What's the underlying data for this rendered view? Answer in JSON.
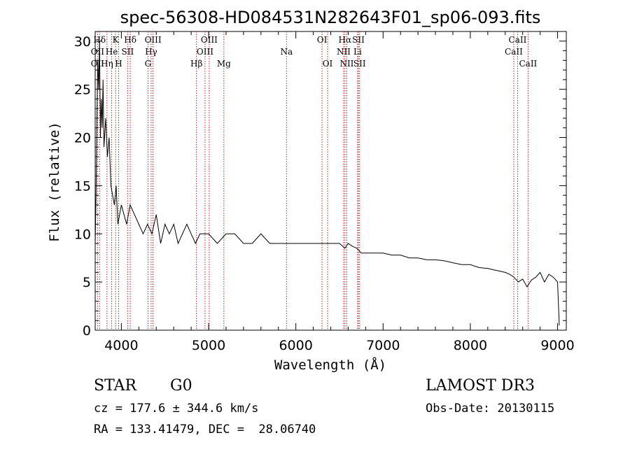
{
  "chart_data": {
    "type": "line",
    "title": "spec-56308-HD084531N282643F01_sp06-093.fits",
    "xlabel": "Wavelength (Å)",
    "ylabel": "Flux (relative)",
    "xlim": [
      3700,
      9100
    ],
    "ylim": [
      0,
      31
    ],
    "x_ticks": [
      4000,
      5000,
      6000,
      7000,
      8000,
      9000
    ],
    "y_ticks": [
      0,
      5,
      10,
      15,
      20,
      25,
      30
    ],
    "grid": false,
    "legend": "none",
    "line_color": "#000000",
    "marker_color": "#b22222",
    "series": [
      {
        "x": [
          3700,
          3710,
          3720,
          3730,
          3740,
          3750,
          3760,
          3770,
          3780,
          3790,
          3800,
          3820,
          3840,
          3860,
          3880,
          3900,
          3920,
          3940,
          3960,
          3980,
          4000,
          4030,
          4060,
          4100,
          4150,
          4200,
          4250,
          4300,
          4350,
          4400,
          4450,
          4500,
          4550,
          4600,
          4650,
          4700,
          4750,
          4800,
          4850,
          4900,
          4950,
          5000,
          5100,
          5200,
          5300,
          5400,
          5500,
          5600,
          5700,
          5800,
          5900,
          6000,
          6100,
          6200,
          6300,
          6400,
          6500,
          6562,
          6600,
          6650,
          6700,
          6750,
          6800,
          6900,
          7000,
          7100,
          7200,
          7300,
          7400,
          7500,
          7600,
          7700,
          7800,
          7900,
          8000,
          8100,
          8200,
          8300,
          8400,
          8450,
          8500,
          8550,
          8600,
          8650,
          8700,
          8750,
          8800,
          8850,
          8900,
          8950,
          9000,
          9020
        ],
        "y": [
          9,
          14,
          22,
          28,
          25,
          30,
          20,
          24,
          21,
          26,
          19,
          22,
          18,
          20,
          15,
          14,
          13,
          15,
          11,
          12,
          13,
          12,
          11,
          13,
          12,
          11,
          10,
          11,
          10,
          12,
          9,
          11,
          10,
          11,
          9,
          10,
          11,
          10,
          9,
          10,
          10,
          10,
          9,
          10,
          10,
          9,
          9,
          10,
          9,
          9,
          9,
          9,
          9,
          9,
          9,
          9,
          9,
          8.5,
          9,
          8.7,
          8.5,
          8,
          8,
          8,
          8,
          7.8,
          7.8,
          7.5,
          7.5,
          7.3,
          7.3,
          7.2,
          7,
          6.8,
          6.8,
          6.5,
          6.4,
          6.2,
          6,
          5.8,
          5.5,
          5,
          5.3,
          4.5,
          5.2,
          5.5,
          6,
          5,
          5.8,
          5.5,
          5,
          0.5
        ]
      }
    ],
    "line_markers": [
      {
        "label": "Hδ",
        "wavelength": 3750,
        "row": 0
      },
      {
        "label": "K",
        "wavelength": 3934,
        "row": 0
      },
      {
        "label": "Hδ",
        "wavelength": 4102,
        "row": 0
      },
      {
        "label": "OIII",
        "wavelength": 4363,
        "row": 0
      },
      {
        "label": "OIII",
        "wavelength": 5007,
        "row": 0
      },
      {
        "label": "OI",
        "wavelength": 6300,
        "row": 0
      },
      {
        "label": "Hα",
        "wavelength": 6563,
        "row": 0
      },
      {
        "label": "SII",
        "wavelength": 6717,
        "row": 0
      },
      {
        "label": "CaII",
        "wavelength": 8542,
        "row": 0
      },
      {
        "label": "OII",
        "wavelength": 3727,
        "row": 1
      },
      {
        "label": "He",
        "wavelength": 3889,
        "row": 1
      },
      {
        "label": "SII",
        "wavelength": 4072,
        "row": 1
      },
      {
        "label": "Hγ",
        "wavelength": 4341,
        "row": 1
      },
      {
        "label": "OIII",
        "wavelength": 4959,
        "row": 1
      },
      {
        "label": "Na",
        "wavelength": 5893,
        "row": 1
      },
      {
        "label": "NII",
        "wavelength": 6548,
        "row": 1
      },
      {
        "label": "Li",
        "wavelength": 6708,
        "row": 1
      },
      {
        "label": "CaII",
        "wavelength": 8498,
        "row": 1
      },
      {
        "label": "OII",
        "wavelength": 3727,
        "row": 2
      },
      {
        "label": "Hη",
        "wavelength": 3835,
        "row": 2
      },
      {
        "label": "H",
        "wavelength": 3969,
        "row": 2
      },
      {
        "label": "G",
        "wavelength": 4305,
        "row": 2
      },
      {
        "label": "Hβ",
        "wavelength": 4861,
        "row": 2
      },
      {
        "label": "Mg",
        "wavelength": 5175,
        "row": 2
      },
      {
        "label": "OI",
        "wavelength": 6364,
        "row": 2
      },
      {
        "label": "NII",
        "wavelength": 6584,
        "row": 2
      },
      {
        "label": "SII",
        "wavelength": 6731,
        "row": 2
      },
      {
        "label": "CaII",
        "wavelength": 8662,
        "row": 2
      }
    ]
  },
  "info": {
    "class": "STAR",
    "subclass": "G0",
    "survey": "LAMOST DR3",
    "cz": "cz = 177.6 ± 344.6 km/s",
    "obs_date": "Obs-Date: 20130115",
    "coords": "RA = 133.41479, DEC =  28.06740"
  }
}
